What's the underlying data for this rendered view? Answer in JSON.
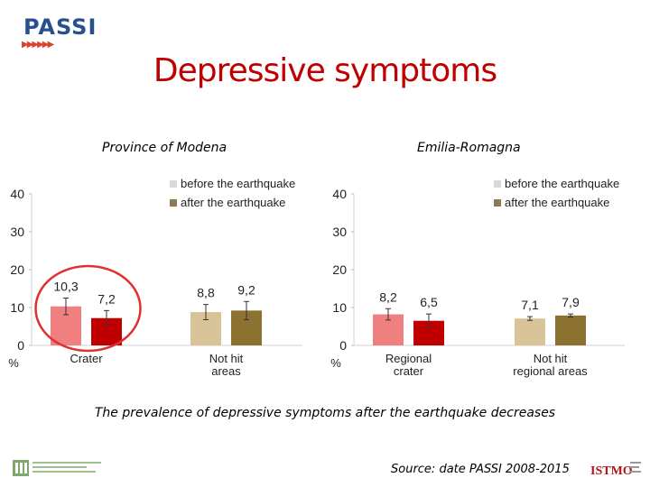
{
  "header": {
    "logo_text": "PASSI",
    "title": "Depressive symptoms"
  },
  "footer": {
    "caption": "The prevalence of depressive symptoms after the earthquake decreases",
    "source": "Source: date PASSI 2008-2015",
    "right_logo_text": "ISTMO"
  },
  "colors": {
    "title": "#c00000",
    "highlight_ellipse": "#e03030",
    "crater_before": "#f08080",
    "crater_after": "#c00000",
    "other_before": "#d9c49a",
    "other_after": "#8c7230",
    "legend_before": "#d9d9d9",
    "legend_after": "#8c7a55"
  },
  "chart_data": [
    {
      "type": "bar",
      "subtitle": "Province of Modena",
      "ylim": [
        0,
        40
      ],
      "yticks": [
        "0",
        "10",
        "20",
        "30",
        "40"
      ],
      "yunit": "%",
      "legend": [
        "before the earthquake",
        "after the earthquake"
      ],
      "legend_position": "top-right",
      "categories": [
        "Crater",
        "Not hit areas"
      ],
      "series": [
        {
          "name": "before the earthquake",
          "values": [
            10.3,
            8.8
          ],
          "labels": [
            "10,3",
            "8,8"
          ]
        },
        {
          "name": "after the earthquake",
          "values": [
            7.2,
            9.2
          ],
          "labels": [
            "7,2",
            "9,2"
          ]
        }
      ],
      "error": [
        [
          2.2,
          2.0
        ],
        [
          2.0,
          2.4
        ]
      ],
      "highlight": "Crater"
    },
    {
      "type": "bar",
      "subtitle": "Emilia-Romagna",
      "ylim": [
        0,
        40
      ],
      "yticks": [
        "0",
        "10",
        "20",
        "30",
        "40"
      ],
      "yunit": "%",
      "legend": [
        "before the earthquake",
        "after the earthquake"
      ],
      "legend_position": "top-right",
      "categories": [
        "Regional crater",
        "Not hit regional areas"
      ],
      "series": [
        {
          "name": "before the earthquake",
          "values": [
            8.2,
            7.1
          ],
          "labels": [
            "8,2",
            "7,1"
          ]
        },
        {
          "name": "after the earthquake",
          "values": [
            6.5,
            7.9
          ],
          "labels": [
            "6,5",
            "7,9"
          ]
        }
      ],
      "error": [
        [
          1.5,
          0.5
        ],
        [
          1.8,
          0.4
        ]
      ]
    }
  ]
}
